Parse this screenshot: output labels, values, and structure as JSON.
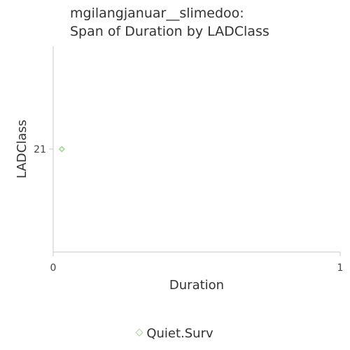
{
  "title_line1": "mgilangjanuar__slimedoo:",
  "title_line2": "Span of Duration by LADClass",
  "chart_data": {
    "type": "scatter",
    "title": "mgilangjanuar__slimedoo: Span of Duration by LADClass",
    "xlabel": "Duration",
    "ylabel": "LADClass",
    "xlim": [
      0,
      1
    ],
    "x_ticks": [
      "0",
      "1"
    ],
    "y_ticks": [
      "21"
    ],
    "series": [
      {
        "name": "Quiet.Surv",
        "color": "#a4d88f",
        "marker": "diamond",
        "points": [
          {
            "x": 0.03,
            "y": "21"
          }
        ]
      }
    ],
    "legend": "bottom",
    "grid": false
  }
}
